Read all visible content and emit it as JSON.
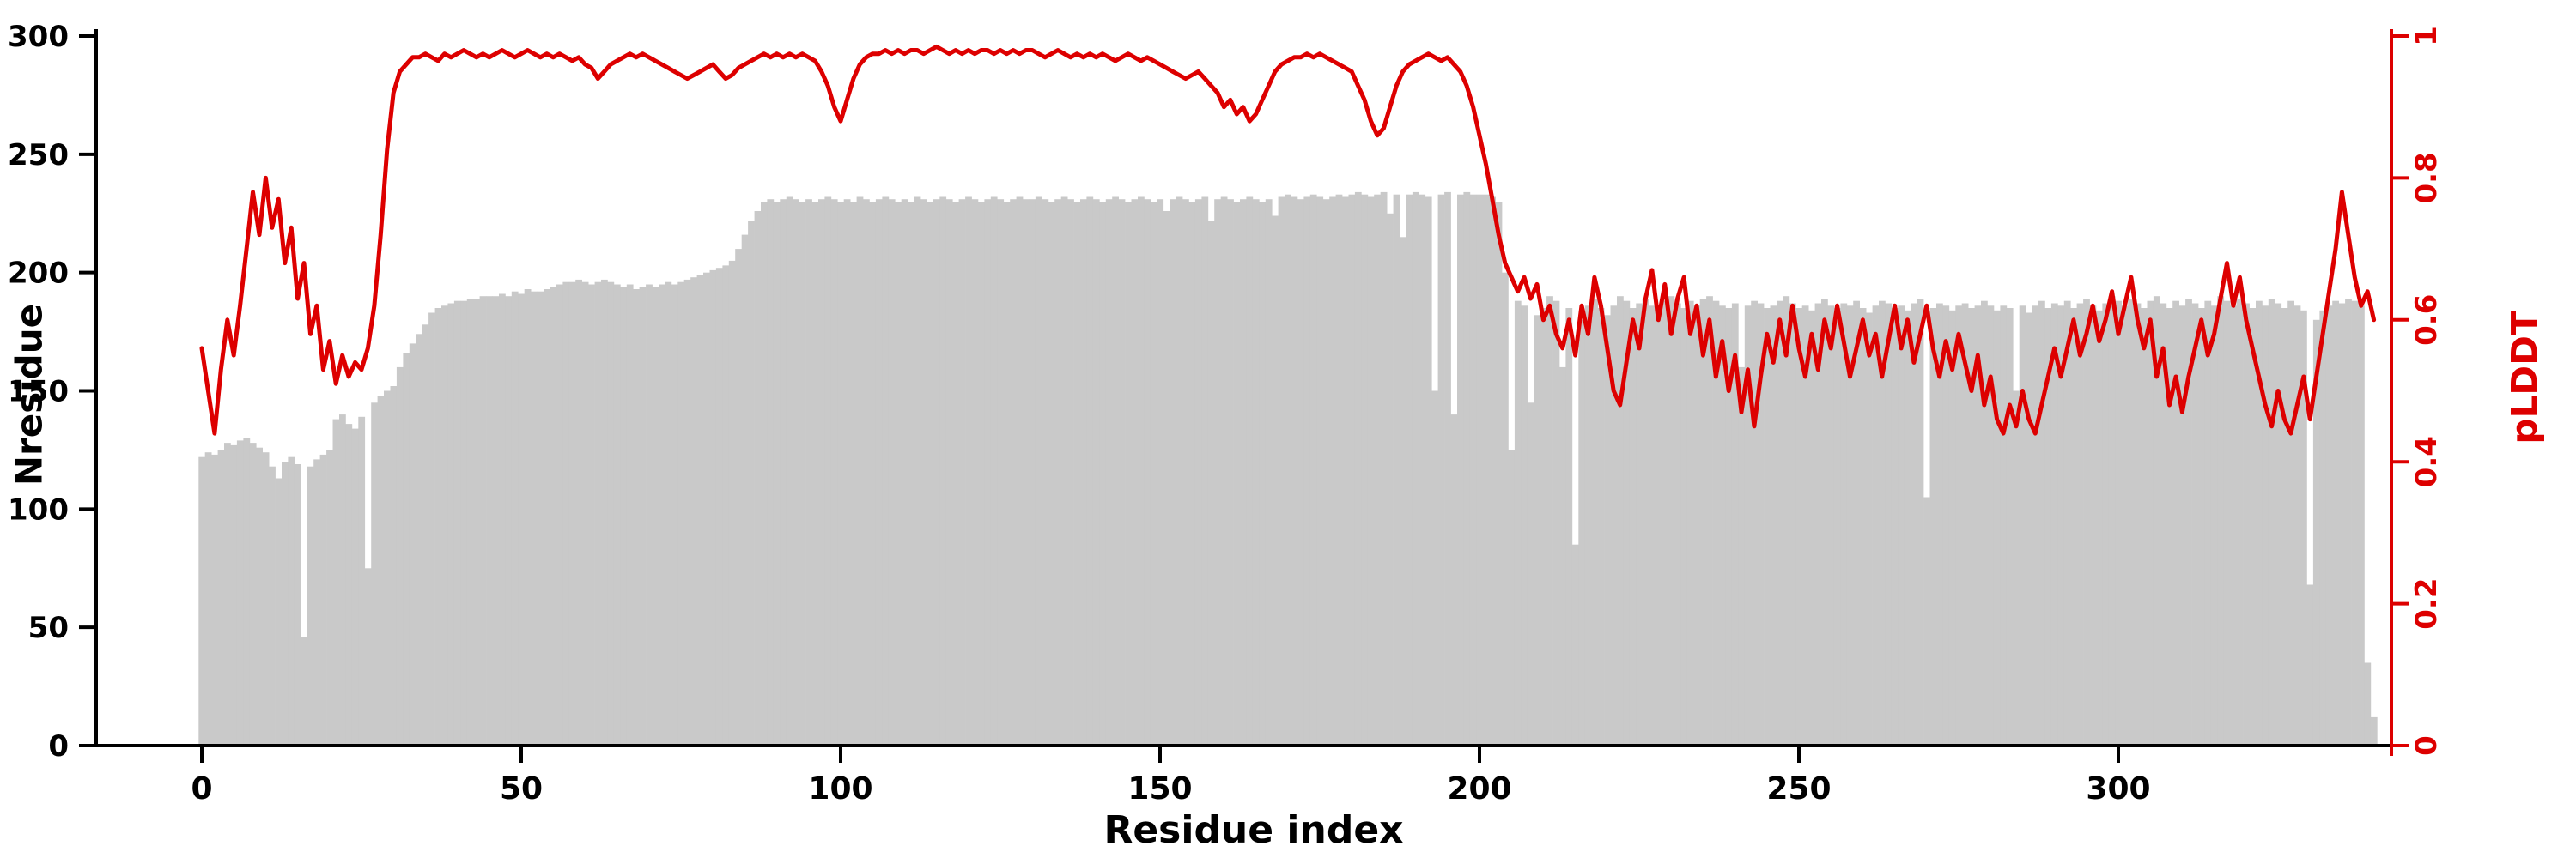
{
  "labels": {
    "x_axis": "Residue index",
    "y_left": "Nresidue",
    "y_right": "pLDDT"
  },
  "colors": {
    "bar": "#c9c9c9",
    "line": "#dd0000",
    "axis": "#000000"
  },
  "chart_data": {
    "type": "bar",
    "subtype": "bar+line dual axis",
    "title": "",
    "xlabel": "Residue index",
    "x_start": 0,
    "x_step": 1,
    "x_ticks": [
      0,
      50,
      100,
      150,
      200,
      250,
      300
    ],
    "left_axis": {
      "label": "Nresidue",
      "range": [
        0,
        300
      ],
      "ticks": [
        0,
        50,
        100,
        150,
        200,
        250,
        300
      ],
      "color": "#000000"
    },
    "right_axis": {
      "label": "pLDDT",
      "range": [
        0,
        1
      ],
      "ticks": [
        0,
        0.2,
        0.4,
        0.6,
        0.8,
        1
      ],
      "tick_labels": [
        "0",
        "0.2",
        "0.4",
        "0.6",
        "0.8",
        "1"
      ],
      "color": "#dd0000"
    },
    "legend": "none",
    "grid": false,
    "series": [
      {
        "name": "Nresidue",
        "type": "bar",
        "axis": "left",
        "color": "#c9c9c9",
        "values": [
          122,
          124,
          123,
          125,
          128,
          127,
          129,
          130,
          128,
          126,
          124,
          118,
          113,
          120,
          122,
          119,
          46,
          118,
          121,
          123,
          125,
          138,
          140,
          136,
          134,
          139,
          75,
          145,
          148,
          150,
          152,
          160,
          166,
          170,
          174,
          178,
          183,
          185,
          186,
          187,
          188,
          188,
          189,
          189,
          190,
          190,
          190,
          191,
          190,
          192,
          191,
          193,
          192,
          192,
          193,
          194,
          195,
          196,
          196,
          197,
          196,
          195,
          196,
          197,
          196,
          195,
          194,
          195,
          193,
          194,
          195,
          194,
          195,
          196,
          195,
          196,
          197,
          198,
          199,
          200,
          201,
          202,
          203,
          205,
          210,
          216,
          222,
          226,
          230,
          231,
          230,
          231,
          232,
          231,
          230,
          231,
          230,
          231,
          232,
          231,
          230,
          231,
          230,
          232,
          231,
          230,
          231,
          232,
          231,
          230,
          231,
          230,
          232,
          231,
          230,
          231,
          232,
          231,
          230,
          231,
          232,
          231,
          230,
          231,
          232,
          231,
          230,
          231,
          232,
          231,
          231,
          232,
          231,
          230,
          231,
          232,
          231,
          230,
          231,
          232,
          231,
          230,
          231,
          232,
          231,
          230,
          231,
          232,
          231,
          230,
          231,
          226,
          231,
          232,
          231,
          230,
          231,
          232,
          222,
          231,
          232,
          231,
          230,
          231,
          232,
          231,
          230,
          231,
          224,
          232,
          233,
          232,
          231,
          232,
          233,
          232,
          231,
          232,
          233,
          232,
          233,
          234,
          233,
          232,
          233,
          234,
          225,
          233,
          215,
          233,
          234,
          233,
          232,
          150,
          233,
          234,
          140,
          233,
          234,
          233,
          233,
          233,
          232,
          230,
          200,
          125,
          188,
          186,
          145,
          182,
          185,
          190,
          188,
          160,
          185,
          85,
          180,
          186,
          189,
          185,
          182,
          186,
          190,
          188,
          185,
          187,
          189,
          186,
          184,
          188,
          190,
          187,
          185,
          188,
          186,
          189,
          190,
          188,
          186,
          185,
          187,
          160,
          186,
          188,
          187,
          185,
          186,
          188,
          190,
          187,
          185,
          186,
          184,
          187,
          189,
          186,
          185,
          187,
          186,
          188,
          185,
          183,
          186,
          188,
          187,
          185,
          186,
          184,
          187,
          189,
          105,
          185,
          187,
          186,
          184,
          186,
          187,
          185,
          186,
          188,
          186,
          184,
          186,
          185,
          150,
          186,
          183,
          186,
          188,
          185,
          187,
          186,
          188,
          185,
          187,
          189,
          186,
          184,
          187,
          190,
          188,
          186,
          189,
          187,
          185,
          188,
          190,
          187,
          185,
          188,
          186,
          189,
          187,
          185,
          188,
          186,
          190,
          188,
          186,
          189,
          187,
          185,
          188,
          186,
          189,
          187,
          185,
          188,
          186,
          184,
          68,
          180,
          184,
          186,
          188,
          187,
          189,
          188,
          186,
          35,
          12
        ]
      },
      {
        "name": "pLDDT",
        "type": "line",
        "axis": "right",
        "color": "#dd0000",
        "values": [
          0.56,
          0.5,
          0.44,
          0.53,
          0.6,
          0.55,
          0.62,
          0.7,
          0.78,
          0.72,
          0.8,
          0.73,
          0.77,
          0.68,
          0.73,
          0.63,
          0.68,
          0.58,
          0.62,
          0.53,
          0.57,
          0.51,
          0.55,
          0.52,
          0.54,
          0.53,
          0.56,
          0.62,
          0.72,
          0.84,
          0.92,
          0.95,
          0.96,
          0.97,
          0.97,
          0.975,
          0.97,
          0.965,
          0.975,
          0.97,
          0.975,
          0.98,
          0.975,
          0.97,
          0.975,
          0.97,
          0.975,
          0.98,
          0.975,
          0.97,
          0.975,
          0.98,
          0.975,
          0.97,
          0.975,
          0.97,
          0.975,
          0.97,
          0.965,
          0.97,
          0.96,
          0.955,
          0.94,
          0.95,
          0.96,
          0.965,
          0.97,
          0.975,
          0.97,
          0.975,
          0.97,
          0.965,
          0.96,
          0.955,
          0.95,
          0.945,
          0.94,
          0.945,
          0.95,
          0.955,
          0.96,
          0.95,
          0.94,
          0.945,
          0.955,
          0.96,
          0.965,
          0.97,
          0.975,
          0.97,
          0.975,
          0.97,
          0.975,
          0.97,
          0.975,
          0.97,
          0.965,
          0.95,
          0.93,
          0.9,
          0.88,
          0.91,
          0.94,
          0.96,
          0.97,
          0.975,
          0.975,
          0.98,
          0.975,
          0.98,
          0.975,
          0.98,
          0.98,
          0.975,
          0.98,
          0.985,
          0.98,
          0.975,
          0.98,
          0.975,
          0.98,
          0.975,
          0.98,
          0.98,
          0.975,
          0.98,
          0.975,
          0.98,
          0.975,
          0.98,
          0.98,
          0.975,
          0.97,
          0.975,
          0.98,
          0.975,
          0.97,
          0.975,
          0.97,
          0.975,
          0.97,
          0.975,
          0.97,
          0.965,
          0.97,
          0.975,
          0.97,
          0.965,
          0.97,
          0.965,
          0.96,
          0.955,
          0.95,
          0.945,
          0.94,
          0.945,
          0.95,
          0.94,
          0.93,
          0.92,
          0.9,
          0.91,
          0.89,
          0.9,
          0.88,
          0.89,
          0.91,
          0.93,
          0.95,
          0.96,
          0.965,
          0.97,
          0.97,
          0.975,
          0.97,
          0.975,
          0.97,
          0.965,
          0.96,
          0.955,
          0.95,
          0.93,
          0.91,
          0.88,
          0.86,
          0.87,
          0.9,
          0.93,
          0.95,
          0.96,
          0.965,
          0.97,
          0.975,
          0.97,
          0.965,
          0.97,
          0.96,
          0.95,
          0.93,
          0.9,
          0.86,
          0.82,
          0.77,
          0.72,
          0.68,
          0.66,
          0.64,
          0.66,
          0.63,
          0.65,
          0.6,
          0.62,
          0.58,
          0.56,
          0.6,
          0.55,
          0.62,
          0.58,
          0.66,
          0.62,
          0.56,
          0.5,
          0.48,
          0.54,
          0.6,
          0.56,
          0.63,
          0.67,
          0.6,
          0.65,
          0.58,
          0.63,
          0.66,
          0.58,
          0.62,
          0.55,
          0.6,
          0.52,
          0.57,
          0.5,
          0.55,
          0.47,
          0.53,
          0.45,
          0.52,
          0.58,
          0.54,
          0.6,
          0.55,
          0.62,
          0.56,
          0.52,
          0.58,
          0.53,
          0.6,
          0.56,
          0.62,
          0.57,
          0.52,
          0.56,
          0.6,
          0.55,
          0.58,
          0.52,
          0.57,
          0.62,
          0.56,
          0.6,
          0.54,
          0.58,
          0.62,
          0.56,
          0.52,
          0.57,
          0.53,
          0.58,
          0.54,
          0.5,
          0.55,
          0.48,
          0.52,
          0.46,
          0.44,
          0.48,
          0.45,
          0.5,
          0.46,
          0.44,
          0.48,
          0.52,
          0.56,
          0.52,
          0.56,
          0.6,
          0.55,
          0.58,
          0.62,
          0.57,
          0.6,
          0.64,
          0.58,
          0.62,
          0.66,
          0.6,
          0.56,
          0.6,
          0.52,
          0.56,
          0.48,
          0.52,
          0.47,
          0.52,
          0.56,
          0.6,
          0.55,
          0.58,
          0.63,
          0.68,
          0.62,
          0.66,
          0.6,
          0.56,
          0.52,
          0.48,
          0.45,
          0.5,
          0.46,
          0.44,
          0.48,
          0.52,
          0.46,
          0.52,
          0.58,
          0.64,
          0.7,
          0.78,
          0.72,
          0.66,
          0.62,
          0.64,
          0.6
        ]
      }
    ]
  }
}
